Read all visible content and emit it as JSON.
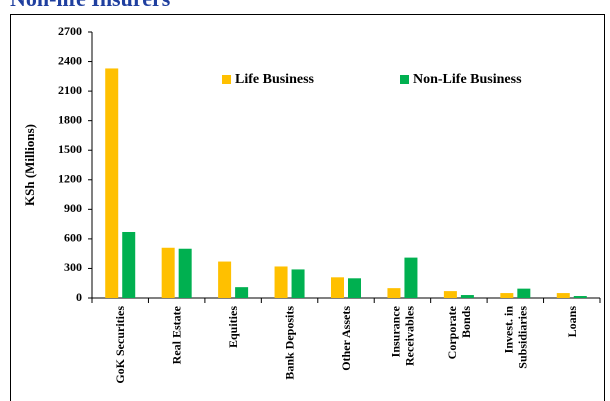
{
  "chart_data": {
    "type": "bar",
    "title": "Non-life Insurers",
    "y_label": "KSh (Millions)",
    "categories": [
      "GoK Securities",
      "Real Estate",
      "Equities",
      "Bank Deposits",
      "Other Assets",
      "Insurance\nReceivables",
      "Corporate\nBonds",
      "Invest. in\nSubsidiaries",
      "Loans"
    ],
    "series": [
      {
        "name": "Life Business",
        "color": "#FFC000",
        "values": [
          2330,
          510,
          370,
          320,
          210,
          100,
          70,
          50,
          50
        ]
      },
      {
        "name": "Non-Life Business",
        "color": "#00B050",
        "values": [
          670,
          500,
          110,
          290,
          200,
          410,
          30,
          95,
          20
        ]
      }
    ],
    "ylim": [
      0,
      2700
    ],
    "yticks": [
      0,
      300,
      600,
      900,
      1200,
      1500,
      1800,
      2100,
      2400,
      2700
    ],
    "grid": false
  }
}
